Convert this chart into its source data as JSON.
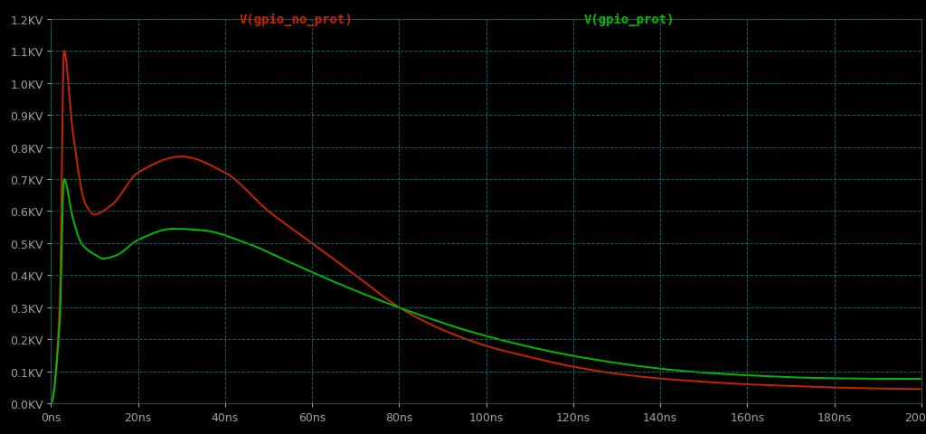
{
  "bg_color": "#000000",
  "grid_color": "#006666",
  "label_color": "#a0a0a0",
  "red_label": "V(gpio_no_prot)",
  "green_label": "V(gpio_prot)",
  "red_color": "#cc2200",
  "green_color": "#00bb00",
  "xmin": 0,
  "xmax": 200,
  "ymin": 0.0,
  "ymax": 1.2,
  "xlabel_step": 20,
  "ylabel_step": 0.1,
  "label_fontsize": 10,
  "tick_fontsize": 9,
  "red_keypoints": [
    [
      0,
      0.0
    ],
    [
      2,
      0.3
    ],
    [
      3,
      1.1
    ],
    [
      5,
      0.85
    ],
    [
      8,
      0.62
    ],
    [
      10,
      0.59
    ],
    [
      14,
      0.62
    ],
    [
      20,
      0.72
    ],
    [
      30,
      0.77
    ],
    [
      40,
      0.72
    ],
    [
      50,
      0.6
    ],
    [
      60,
      0.5
    ],
    [
      70,
      0.4
    ],
    [
      80,
      0.3
    ],
    [
      90,
      0.23
    ],
    [
      100,
      0.18
    ],
    [
      110,
      0.145
    ],
    [
      120,
      0.115
    ],
    [
      130,
      0.093
    ],
    [
      140,
      0.078
    ],
    [
      150,
      0.068
    ],
    [
      160,
      0.06
    ],
    [
      170,
      0.055
    ],
    [
      180,
      0.05
    ],
    [
      190,
      0.047
    ],
    [
      200,
      0.045
    ]
  ],
  "green_keypoints": [
    [
      0,
      0.0
    ],
    [
      2,
      0.25
    ],
    [
      3,
      0.7
    ],
    [
      5,
      0.58
    ],
    [
      7,
      0.5
    ],
    [
      10,
      0.465
    ],
    [
      12,
      0.452
    ],
    [
      15,
      0.462
    ],
    [
      20,
      0.51
    ],
    [
      28,
      0.545
    ],
    [
      35,
      0.54
    ],
    [
      45,
      0.5
    ],
    [
      55,
      0.44
    ],
    [
      65,
      0.38
    ],
    [
      75,
      0.325
    ],
    [
      85,
      0.275
    ],
    [
      95,
      0.23
    ],
    [
      105,
      0.193
    ],
    [
      115,
      0.162
    ],
    [
      125,
      0.137
    ],
    [
      135,
      0.117
    ],
    [
      145,
      0.102
    ],
    [
      155,
      0.092
    ],
    [
      165,
      0.085
    ],
    [
      175,
      0.08
    ],
    [
      185,
      0.078
    ],
    [
      195,
      0.077
    ],
    [
      200,
      0.077
    ]
  ]
}
